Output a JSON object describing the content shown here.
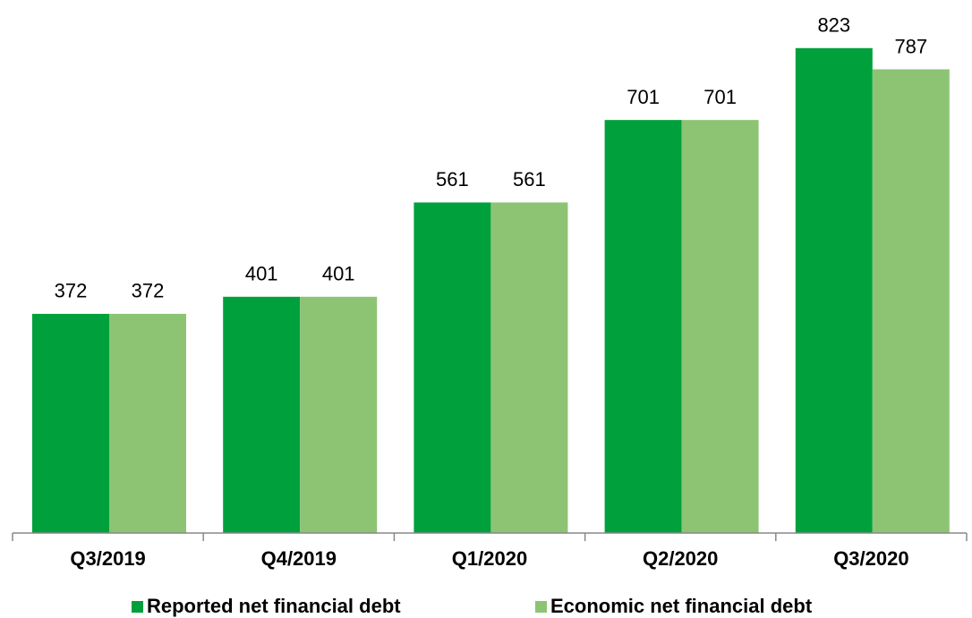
{
  "chart_data": {
    "type": "bar",
    "categories": [
      "Q3/2019",
      "Q4/2019",
      "Q1/2020",
      "Q2/2020",
      "Q3/2020"
    ],
    "series": [
      {
        "name": "Reported net financial debt",
        "color": "#00a03c",
        "values": [
          372,
          401,
          561,
          701,
          823
        ]
      },
      {
        "name": "Economic net financial debt",
        "color": "#8cc473",
        "values": [
          372,
          401,
          561,
          701,
          787
        ]
      }
    ],
    "ylim": [
      0,
      850
    ],
    "legend": "bottom"
  }
}
